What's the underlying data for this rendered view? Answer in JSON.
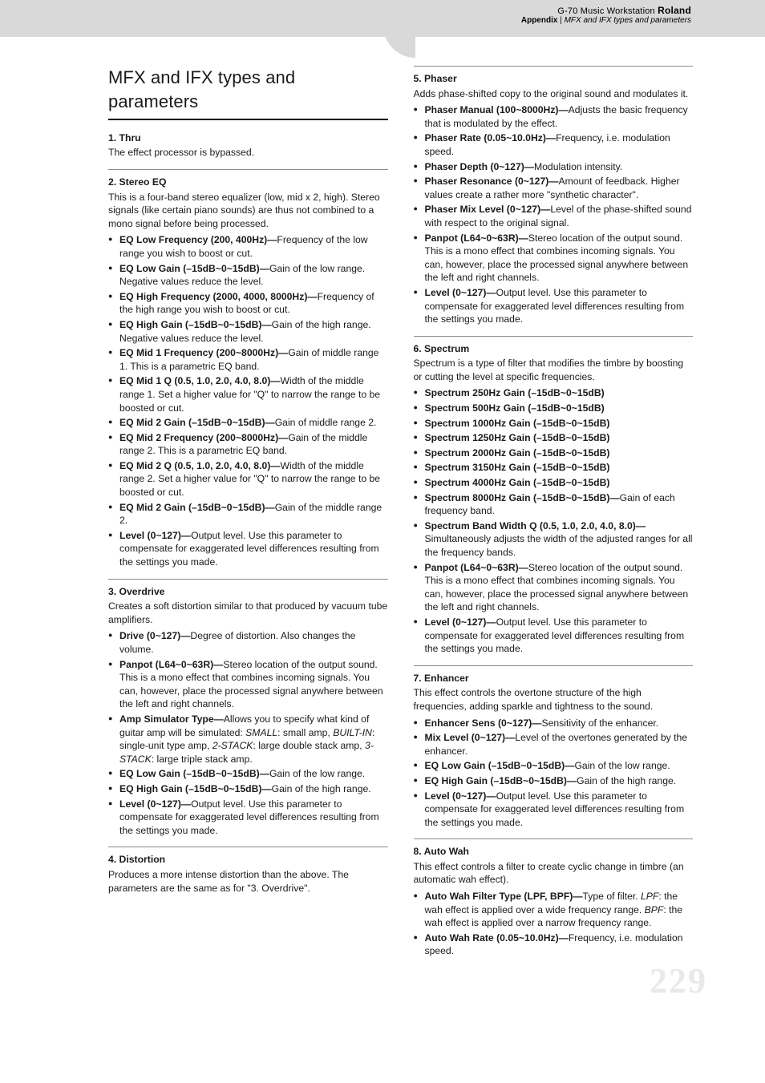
{
  "header": {
    "product": "G-70 Music Workstation",
    "brand": "Roland",
    "appendix": "Appendix",
    "breadcrumb": "MFX and IFX types and parameters"
  },
  "page_number": "229",
  "main_title": "MFX and IFX types and parameters",
  "left": {
    "sections": [
      {
        "id": "s1",
        "title": "1. Thru",
        "intro": "The effect processor is bypassed.",
        "params": []
      },
      {
        "id": "s2",
        "title": "2. Stereo EQ",
        "intro": "This is a four-band stereo equalizer (low, mid x 2, high). Stereo signals (like certain piano sounds) are thus not combined to a mono signal before being processed.",
        "params": [
          {
            "name": "EQ Low Frequency (200, 400Hz)—",
            "desc": "Frequency of the low range you wish to boost or cut."
          },
          {
            "name": "EQ Low Gain (–15dB~0~15dB)—",
            "desc": "Gain of the low range. Negative values reduce the level."
          },
          {
            "name": "EQ High Frequency (2000, 4000, 8000Hz)—",
            "desc": "Frequency of the high range you wish to boost or cut."
          },
          {
            "name": "EQ High Gain (–15dB~0~15dB)—",
            "desc": "Gain of the high range. Negative values reduce the level."
          },
          {
            "name": "EQ Mid 1 Frequency (200~8000Hz)—",
            "desc": "Gain of middle range 1. This is a parametric EQ band."
          },
          {
            "name": "EQ Mid 1 Q (0.5, 1.0, 2.0, 4.0, 8.0)—",
            "desc": "Width of the middle range 1. Set a higher value for \"Q\" to narrow the range to be boosted or cut."
          },
          {
            "name": "EQ Mid 2 Gain (–15dB~0~15dB)—",
            "desc": "Gain of middle range 2."
          },
          {
            "name": "EQ Mid 2 Frequency (200~8000Hz)—",
            "desc": "Gain of the middle range 2. This is a parametric EQ band."
          },
          {
            "name": "EQ Mid 2 Q (0.5, 1.0, 2.0, 4.0, 8.0)—",
            "desc": "Width of the middle range 2. Set a higher value for \"Q\" to narrow the range to be boosted or cut."
          },
          {
            "name": "EQ Mid 2 Gain (–15dB~0~15dB)—",
            "desc": "Gain of the middle range 2."
          },
          {
            "name": "Level (0~127)—",
            "desc": "Output level. Use this parameter to compensate for exaggerated level differences resulting from the settings you made."
          }
        ]
      },
      {
        "id": "s3",
        "title": "3. Overdrive",
        "intro": "Creates a soft distortion similar to that produced by vacuum tube amplifiers.",
        "params": [
          {
            "name": "Drive (0~127)—",
            "desc": "Degree of distortion. Also changes the volume."
          },
          {
            "name": "Panpot (L64~0~63R)—",
            "desc": "Stereo location of the output sound. This is a mono effect that combines incoming signals. You can, however, place the processed signal anywhere between the left and right channels."
          },
          {
            "name": "Amp Simulator Type—",
            "desc_html": "Allows you to specify what kind of guitar amp will be simulated: <span class=\"em\">SMALL</span>: small amp, <span class=\"em\">BUILT-IN</span>: single-unit type amp, <span class=\"em\">2-STACK</span>: large double stack amp, <span class=\"em\">3-STACK</span>: large triple stack amp."
          },
          {
            "name": "EQ Low Gain (–15dB~0~15dB)—",
            "desc": "Gain of the low range."
          },
          {
            "name": "EQ High Gain (–15dB~0~15dB)—",
            "desc": "Gain of the high range."
          },
          {
            "name": "Level (0~127)—",
            "desc": "Output level. Use this parameter to compensate for exaggerated level differences resulting from the settings you made."
          }
        ]
      },
      {
        "id": "s4",
        "title": "4. Distortion",
        "intro": "Produces a more intense distortion than the above. The parameters are the same as for \"3. Overdrive\".",
        "params": []
      }
    ]
  },
  "right": {
    "sections": [
      {
        "id": "s5",
        "title": "5. Phaser",
        "intro": "Adds phase-shifted copy to the original sound and modulates it.",
        "params": [
          {
            "name": "Phaser Manual (100~8000Hz)—",
            "desc": "Adjusts the basic frequency that is modulated by the effect."
          },
          {
            "name": "Phaser Rate (0.05~10.0Hz)—",
            "desc": "Frequency, i.e. modulation speed."
          },
          {
            "name": "Phaser Depth (0~127)—",
            "desc": "Modulation intensity."
          },
          {
            "name": "Phaser Resonance (0~127)—",
            "desc": "Amount of feedback. Higher values create a rather more \"synthetic character\"."
          },
          {
            "name": "Phaser Mix Level (0~127)—",
            "desc": "Level of the phase-shifted sound with respect to the original signal."
          },
          {
            "name": "Panpot (L64~0~63R)—",
            "desc": "Stereo location of the output sound. This is a mono effect that combines incoming signals. You can, however, place the processed signal anywhere between the left and right channels."
          },
          {
            "name": "Level (0~127)—",
            "desc": "Output level. Use this parameter to compensate for exaggerated level differences resulting from the settings you made."
          }
        ]
      },
      {
        "id": "s6",
        "title": "6. Spectrum",
        "intro": "Spectrum is a type of filter that modifies the timbre by boosting or cutting the level at specific frequencies.",
        "params": [
          {
            "name": "Spectrum 250Hz Gain (–15dB~0~15dB)",
            "desc": ""
          },
          {
            "name": "Spectrum 500Hz Gain (–15dB~0~15dB)",
            "desc": ""
          },
          {
            "name": "Spectrum 1000Hz Gain (–15dB~0~15dB)",
            "desc": ""
          },
          {
            "name": "Spectrum 1250Hz Gain (–15dB~0~15dB)",
            "desc": ""
          },
          {
            "name": "Spectrum 2000Hz Gain (–15dB~0~15dB)",
            "desc": ""
          },
          {
            "name": "Spectrum 3150Hz Gain (–15dB~0~15dB)",
            "desc": ""
          },
          {
            "name": "Spectrum 4000Hz Gain (–15dB~0~15dB)",
            "desc": ""
          },
          {
            "name": "Spectrum 8000Hz Gain (–15dB~0~15dB)—",
            "desc": "Gain of each frequency band."
          },
          {
            "name": "Spectrum Band Width Q (0.5, 1.0, 2.0, 4.0, 8.0)—",
            "desc": "Simultaneously adjusts the width of the adjusted ranges for all the frequency bands."
          },
          {
            "name": "Panpot (L64~0~63R)—",
            "desc": "Stereo location of the output sound. This is a mono effect that combines incoming signals. You can, however, place the processed signal anywhere between the left and right channels."
          },
          {
            "name": "Level (0~127)—",
            "desc": "Output level. Use this parameter to compensate for exaggerated level differences resulting from the settings you made."
          }
        ]
      },
      {
        "id": "s7",
        "title": "7. Enhancer",
        "intro": "This effect controls the overtone structure of the high frequencies, adding sparkle and tightness to the sound.",
        "params": [
          {
            "name": "Enhancer Sens (0~127)—",
            "desc": "Sensitivity of the enhancer."
          },
          {
            "name": "Mix Level (0~127)—",
            "desc": "Level of the overtones generated by the enhancer."
          },
          {
            "name": "EQ Low Gain (–15dB~0~15dB)—",
            "desc": "Gain of the low range."
          },
          {
            "name": "EQ High Gain (–15dB~0~15dB)—",
            "desc": "Gain of the high range."
          },
          {
            "name": "Level (0~127)—",
            "desc": "Output level. Use this parameter to compensate for exaggerated level differences resulting from the settings you made."
          }
        ]
      },
      {
        "id": "s8",
        "title": "8. Auto Wah",
        "intro": "This effect controls a filter to create cyclic change in timbre (an automatic wah effect).",
        "params": [
          {
            "name": "Auto Wah Filter Type (LPF, BPF)—",
            "desc_html": "Type of filter. <span class=\"em\">LPF</span>: the wah effect is applied over a wide frequency range. <span class=\"em\">BPF</span>: the wah effect is applied over a narrow frequency range."
          },
          {
            "name": "Auto Wah Rate (0.05~10.0Hz)—",
            "desc": "Frequency, i.e. modulation speed."
          }
        ]
      }
    ]
  }
}
